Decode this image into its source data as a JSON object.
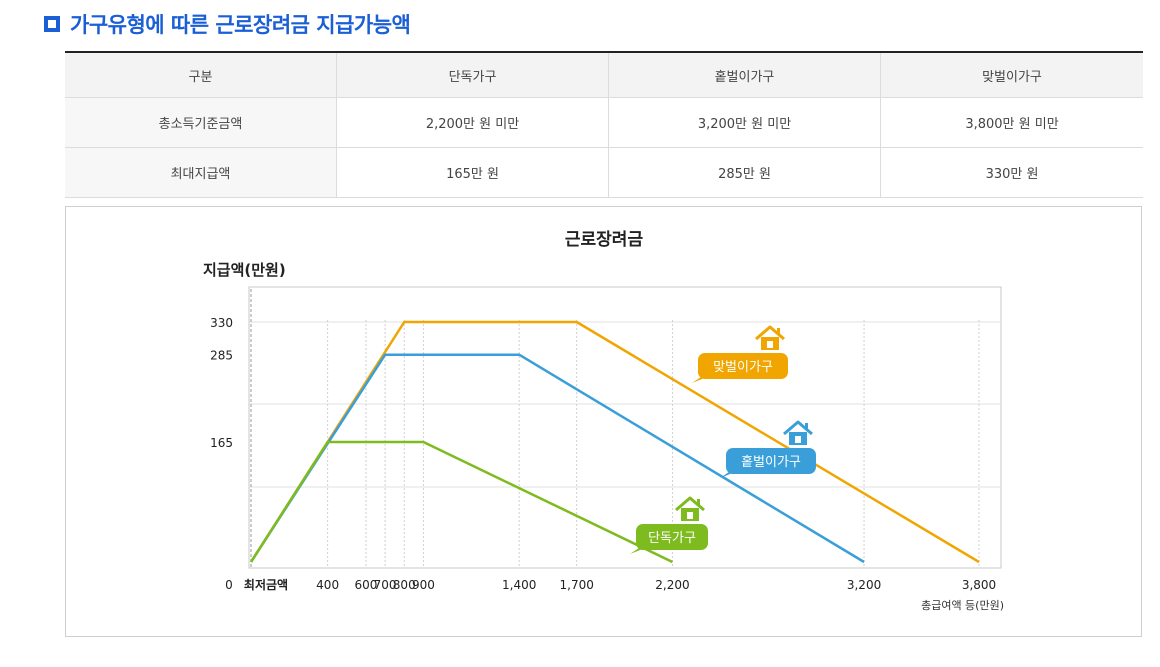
{
  "heading": "가구유형에 따른 근로장려금 지급가능액",
  "table": {
    "headers": [
      "구분",
      "단독가구",
      "홑벌이가구",
      "맞벌이가구"
    ],
    "rows": [
      [
        "총소득기준금액",
        "2,200만 원 미만",
        "3,200만 원 미만",
        "3,800만 원 미만"
      ],
      [
        "최대지급액",
        "165만 원",
        "285만 원",
        "330만 원"
      ]
    ]
  },
  "chart_data": {
    "type": "line",
    "title": "근로장려금",
    "ylabel": "지급액(만원)",
    "xlabel": "총급여액 등(만원)",
    "x_origin_label": "최저금액",
    "y_origin_label": "0",
    "xlim": [
      0,
      3800
    ],
    "ylim": [
      0,
      330
    ],
    "x_ticks": [
      400,
      600,
      700,
      800,
      900,
      1400,
      1700,
      2200,
      3200,
      3800
    ],
    "x_tick_labels": [
      "400",
      "600",
      "700",
      "800",
      "900",
      "1,400",
      "1,700",
      "2,200",
      "3,200",
      "3,800"
    ],
    "y_ticks": [
      165,
      285,
      330
    ],
    "y_tick_labels": [
      "165",
      "285",
      "330"
    ],
    "grid": true,
    "series": [
      {
        "name": "단독가구",
        "color": "#7dbb1e",
        "icon": "house-icon",
        "points": [
          [
            0,
            0
          ],
          [
            400,
            165
          ],
          [
            900,
            165
          ],
          [
            2200,
            0
          ]
        ]
      },
      {
        "name": "홑벌이가구",
        "color": "#3a9fd8",
        "icon": "house-icon",
        "points": [
          [
            0,
            0
          ],
          [
            700,
            285
          ],
          [
            1400,
            285
          ],
          [
            3200,
            0
          ]
        ]
      },
      {
        "name": "맞벌이가구",
        "color": "#f0a500",
        "icon": "house-icon",
        "points": [
          [
            0,
            0
          ],
          [
            800,
            330
          ],
          [
            1700,
            330
          ],
          [
            3800,
            0
          ]
        ]
      }
    ]
  }
}
